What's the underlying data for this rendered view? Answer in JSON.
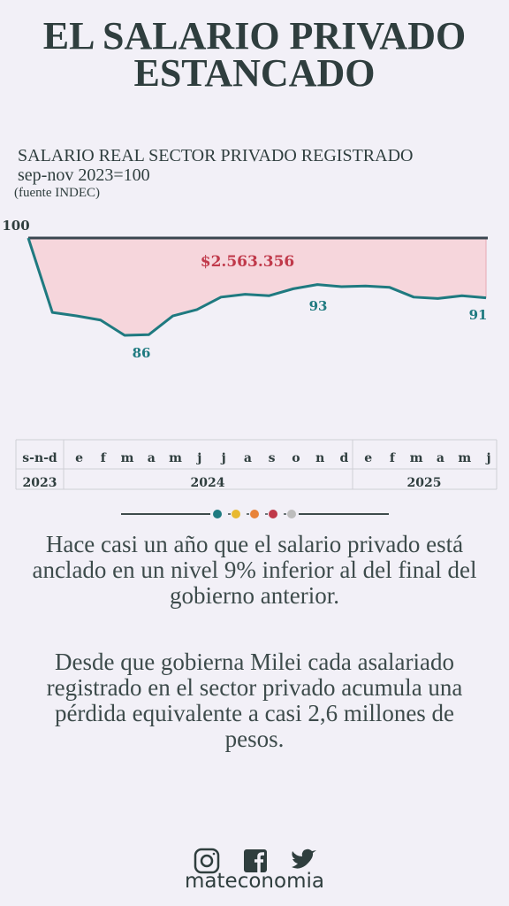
{
  "header": {
    "title_lines": [
      "EL SALARIO PRIVADO",
      "ESTANCADO"
    ]
  },
  "chart_data": {
    "type": "line",
    "title": "SALARIO REAL SECTOR PRIVADO REGISTRADO",
    "subtitle": "sep-nov 2023=100",
    "source": "(fuente INDEC)",
    "categories": [
      "s-n-d",
      null,
      "e",
      "f",
      "m",
      "a",
      "m",
      "j",
      "j",
      "a",
      "s",
      "o",
      "n",
      "d",
      "e",
      "f",
      "m",
      "a",
      "m",
      "j"
    ],
    "years": [
      "2023",
      "2024",
      "2025"
    ],
    "values": [
      100,
      89.3,
      88.8,
      88.2,
      86.0,
      86.1,
      88.8,
      89.7,
      91.5,
      91.9,
      91.7,
      92.7,
      93.3,
      93.0,
      93.1,
      92.9,
      91.5,
      91.3,
      91.7,
      91.4
    ],
    "value_labels": [
      "100",
      null,
      null,
      null,
      "86",
      null,
      null,
      null,
      null,
      null,
      null,
      null,
      "93",
      null,
      null,
      null,
      null,
      null,
      null,
      "91"
    ],
    "annotation": "$2.563.356",
    "color": "#1f7a80",
    "ylim": [
      80,
      100
    ]
  },
  "paragraphs": [
    "Hace casi un año que el salario privado está anclado en un nivel 9% inferior al del final del gobierno anterior.",
    "Desde que gobierna Milei cada asalariado registrado en el sector privado acumula una pérdida equivalente a casi 2,6 millones de pesos."
  ],
  "footer": {
    "brand": "mateconomia"
  }
}
